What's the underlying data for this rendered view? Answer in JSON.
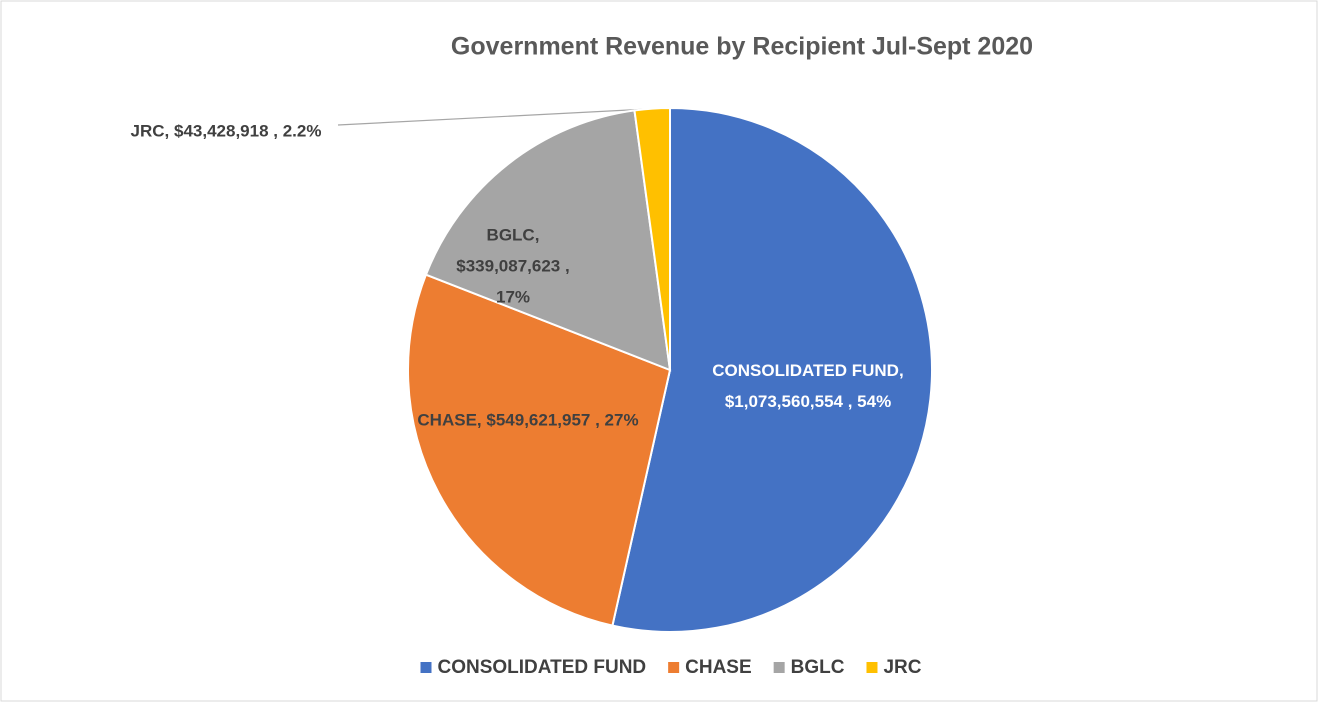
{
  "chart_data": {
    "type": "pie",
    "title": "Government Revenue by Recipient Jul-Sept 2020",
    "categories": [
      "CONSOLIDATED FUND",
      "CHASE",
      "BGLC",
      "JRC"
    ],
    "values": [
      1073560554,
      549621957,
      339087623,
      43428918
    ],
    "value_labels": [
      "$1,073,560,554",
      "$549,621,957",
      "$339,087,623",
      "$43,428,918"
    ],
    "percent_labels": [
      "54%",
      "27%",
      "17%",
      "2.2%"
    ],
    "label_separators": [
      ", ",
      " , "
    ],
    "colors": [
      "#4472c4",
      "#ed7d31",
      "#a5a5a5",
      "#ffc000"
    ],
    "legend": "bottom"
  }
}
